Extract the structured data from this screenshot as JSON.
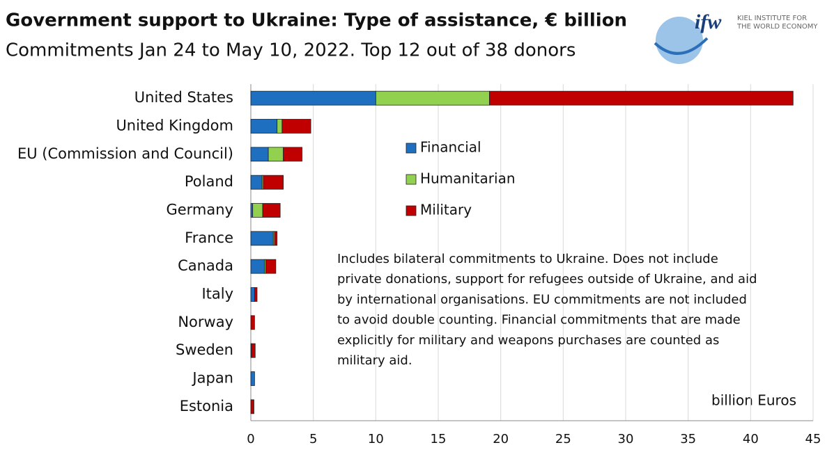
{
  "chart_data": {
    "type": "stacked_barh",
    "title": "Government support to Ukraine: Type of assistance, € billion",
    "subtitle": "Commitments Jan 24 to May 10, 2022. Top 12 out of 38 donors",
    "categories": [
      "United States",
      "United Kingdom",
      "EU (Commission and Council)",
      "Poland",
      "Germany",
      "France",
      "Canada",
      "Italy",
      "Norway",
      "Sweden",
      "Japan",
      "Estonia"
    ],
    "series": [
      {
        "name": "Financial",
        "color": "#1f6fc0",
        "values": [
          10,
          2.1,
          1.4,
          0.9,
          0.15,
          1.8,
          1.1,
          0.3,
          0,
          0.05,
          0.3,
          0
        ]
      },
      {
        "name": "Humanitarian",
        "color": "#92d050",
        "values": [
          9.1,
          0.4,
          1.2,
          0.1,
          0.8,
          0.1,
          0.1,
          0,
          0,
          0,
          0,
          0
        ]
      },
      {
        "name": "Military",
        "color": "#c00000",
        "values": [
          24.3,
          2.3,
          1.5,
          1.6,
          1.4,
          0.2,
          0.8,
          0.2,
          0.3,
          0.3,
          0,
          0.25
        ]
      }
    ],
    "xlim": [
      0,
      45
    ],
    "xticks": [
      0,
      5,
      10,
      15,
      20,
      25,
      30,
      35,
      40,
      45
    ],
    "grid": true,
    "x_unit_label": "billion Euros",
    "note": [
      "Includes bilateral commitments to Ukraine. Does not include",
      "private donations, support for refugees outside of Ukraine, and aid",
      "by international organisations. EU commitments are not included",
      "to avoid double counting. Financial commitments that are made",
      "explicitly for military and weapons purchases are counted as",
      "military aid."
    ]
  },
  "logo": {
    "mark": "ifw",
    "line1": "KIEL INSTITUTE FOR",
    "line2": "THE WORLD ECONOMY"
  }
}
